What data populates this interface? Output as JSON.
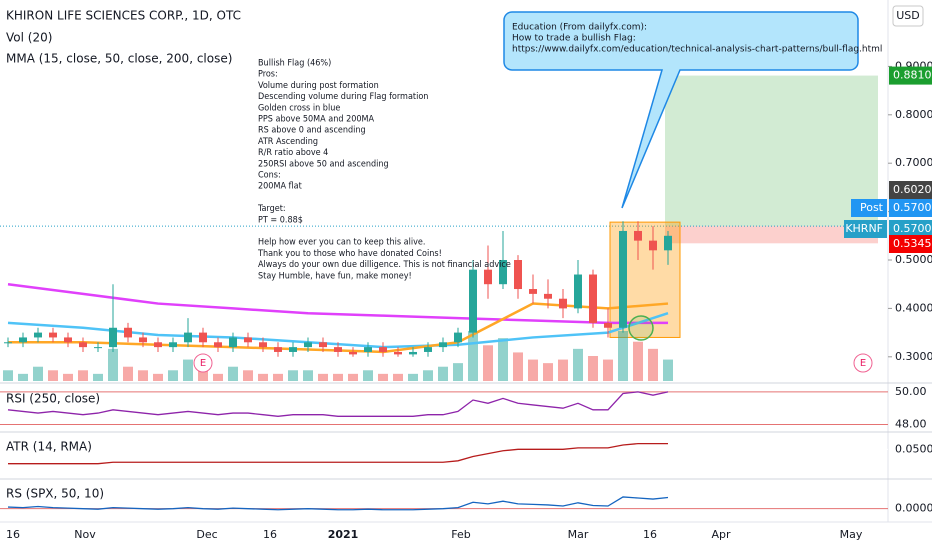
{
  "chart_data": {
    "type": "candlestick",
    "title": "KHIRON LIFE SCIENCES CORP., 1D, OTC",
    "indicator_labels": [
      "Vol (20)",
      "MMA (15, close, 50, close, 200, close)"
    ],
    "currency": "USD",
    "candles": [
      {
        "o": 0.33,
        "h": 0.34,
        "l": 0.32,
        "c": 0.33
      },
      {
        "o": 0.33,
        "h": 0.35,
        "l": 0.32,
        "c": 0.34
      },
      {
        "o": 0.34,
        "h": 0.36,
        "l": 0.33,
        "c": 0.35
      },
      {
        "o": 0.35,
        "h": 0.36,
        "l": 0.33,
        "c": 0.34
      },
      {
        "o": 0.34,
        "h": 0.35,
        "l": 0.32,
        "c": 0.33
      },
      {
        "o": 0.33,
        "h": 0.34,
        "l": 0.31,
        "c": 0.32
      },
      {
        "o": 0.32,
        "h": 0.33,
        "l": 0.31,
        "c": 0.32
      },
      {
        "o": 0.32,
        "h": 0.45,
        "l": 0.31,
        "c": 0.36
      },
      {
        "o": 0.36,
        "h": 0.37,
        "l": 0.33,
        "c": 0.34
      },
      {
        "o": 0.34,
        "h": 0.35,
        "l": 0.32,
        "c": 0.33
      },
      {
        "o": 0.33,
        "h": 0.34,
        "l": 0.31,
        "c": 0.32
      },
      {
        "o": 0.32,
        "h": 0.34,
        "l": 0.31,
        "c": 0.33
      },
      {
        "o": 0.33,
        "h": 0.38,
        "l": 0.32,
        "c": 0.35
      },
      {
        "o": 0.35,
        "h": 0.36,
        "l": 0.32,
        "c": 0.33
      },
      {
        "o": 0.33,
        "h": 0.34,
        "l": 0.31,
        "c": 0.32
      },
      {
        "o": 0.32,
        "h": 0.35,
        "l": 0.31,
        "c": 0.34
      },
      {
        "o": 0.34,
        "h": 0.35,
        "l": 0.32,
        "c": 0.33
      },
      {
        "o": 0.33,
        "h": 0.34,
        "l": 0.31,
        "c": 0.32
      },
      {
        "o": 0.32,
        "h": 0.33,
        "l": 0.3,
        "c": 0.31
      },
      {
        "o": 0.31,
        "h": 0.33,
        "l": 0.3,
        "c": 0.32
      },
      {
        "o": 0.32,
        "h": 0.34,
        "l": 0.31,
        "c": 0.33
      },
      {
        "o": 0.33,
        "h": 0.34,
        "l": 0.31,
        "c": 0.32
      },
      {
        "o": 0.32,
        "h": 0.33,
        "l": 0.3,
        "c": 0.31
      },
      {
        "o": 0.31,
        "h": 0.32,
        "l": 0.3,
        "c": 0.305
      },
      {
        "o": 0.31,
        "h": 0.33,
        "l": 0.3,
        "c": 0.32
      },
      {
        "o": 0.32,
        "h": 0.33,
        "l": 0.3,
        "c": 0.31
      },
      {
        "o": 0.31,
        "h": 0.32,
        "l": 0.3,
        "c": 0.305
      },
      {
        "o": 0.305,
        "h": 0.32,
        "l": 0.3,
        "c": 0.31
      },
      {
        "o": 0.31,
        "h": 0.33,
        "l": 0.3,
        "c": 0.32
      },
      {
        "o": 0.32,
        "h": 0.34,
        "l": 0.31,
        "c": 0.33
      },
      {
        "o": 0.33,
        "h": 0.36,
        "l": 0.32,
        "c": 0.35
      },
      {
        "o": 0.35,
        "h": 0.5,
        "l": 0.34,
        "c": 0.48
      },
      {
        "o": 0.48,
        "h": 0.53,
        "l": 0.42,
        "c": 0.45
      },
      {
        "o": 0.45,
        "h": 0.56,
        "l": 0.44,
        "c": 0.5
      },
      {
        "o": 0.5,
        "h": 0.51,
        "l": 0.42,
        "c": 0.44
      },
      {
        "o": 0.44,
        "h": 0.47,
        "l": 0.41,
        "c": 0.43
      },
      {
        "o": 0.43,
        "h": 0.46,
        "l": 0.4,
        "c": 0.42
      },
      {
        "o": 0.42,
        "h": 0.44,
        "l": 0.38,
        "c": 0.4
      },
      {
        "o": 0.4,
        "h": 0.5,
        "l": 0.39,
        "c": 0.47
      },
      {
        "o": 0.47,
        "h": 0.48,
        "l": 0.36,
        "c": 0.37
      },
      {
        "o": 0.37,
        "h": 0.4,
        "l": 0.34,
        "c": 0.36
      },
      {
        "o": 0.36,
        "h": 0.58,
        "l": 0.35,
        "c": 0.56
      },
      {
        "o": 0.56,
        "h": 0.58,
        "l": 0.5,
        "c": 0.54
      },
      {
        "o": 0.54,
        "h": 0.57,
        "l": 0.48,
        "c": 0.52
      },
      {
        "o": 0.52,
        "h": 0.56,
        "l": 0.49,
        "c": 0.55
      }
    ],
    "volume": [
      3,
      2,
      4,
      3,
      2,
      3,
      2,
      9,
      4,
      3,
      2,
      3,
      6,
      3,
      2,
      4,
      3,
      2,
      2,
      3,
      3,
      2,
      2,
      2,
      3,
      2,
      2,
      2,
      3,
      4,
      5,
      14,
      10,
      12,
      8,
      6,
      5,
      6,
      9,
      7,
      6,
      14,
      11,
      9,
      6
    ],
    "ma_x": [
      0,
      5,
      10,
      15,
      20,
      25,
      30,
      35,
      40,
      44
    ],
    "moving_averages": [
      {
        "name": "MA 200",
        "color": "#e040fb",
        "values": [
          0.45,
          0.43,
          0.41,
          0.4,
          0.39,
          0.385,
          0.38,
          0.375,
          0.37,
          0.37
        ]
      },
      {
        "name": "MA 50",
        "color": "#4fc3f7",
        "values": [
          0.37,
          0.36,
          0.345,
          0.34,
          0.33,
          0.32,
          0.325,
          0.34,
          0.35,
          0.39
        ]
      },
      {
        "name": "MA 15",
        "color": "#ffa726",
        "values": [
          0.33,
          0.33,
          0.325,
          0.32,
          0.315,
          0.31,
          0.33,
          0.41,
          0.4,
          0.41
        ]
      }
    ],
    "ylim": [
      0.25,
      1.0
    ],
    "yticks": [
      {
        "value": 0.3,
        "label": "0.3000"
      },
      {
        "value": 0.4,
        "label": "0.4000"
      },
      {
        "value": 0.5,
        "label": "0.5000"
      },
      {
        "value": 0.6,
        "label": "0.6000"
      },
      {
        "value": 0.7,
        "label": "0.7000"
      },
      {
        "value": 0.8,
        "label": "0.8000"
      },
      {
        "value": 0.9,
        "label": "0.9000"
      }
    ],
    "price_tags": [
      {
        "value": 0.881,
        "label": "0.8810",
        "color": "#1b9e2f"
      },
      {
        "value": 0.602,
        "label": "0.6020",
        "color": "#444444"
      },
      {
        "value": 0.57,
        "label": "0.5700",
        "name": "Post",
        "color": "#2196f3"
      },
      {
        "value": 0.57,
        "label": "0.5700",
        "name": "KHRNF",
        "color": "#26a0c8"
      },
      {
        "value": 0.5345,
        "label": "0.5345",
        "color": "#f40000"
      }
    ],
    "x_labels": [
      "16",
      "Nov",
      "Dec",
      "16",
      "2021",
      "Feb",
      "Mar",
      "16",
      "Apr",
      "May"
    ],
    "note_lines": [
      "Bullish Flag (46%)",
      "Pros:",
      "Volume during post formation",
      "Descending volume during Flag formation",
      "Golden cross in blue",
      "PPS above 50MA and 200MA",
      "RS above 0 and ascending",
      "ATR Ascending",
      "R/R ratio above 4",
      "250RSI above 50 and ascending",
      "Cons:",
      "200MA flat",
      "",
      "Target:",
      "PT = 0.88$",
      "",
      "Help how ever you can to keep this alive.",
      "Thank you to those who have donated Coins!",
      "Always do your own due dilligence. This is not financial advice",
      "Stay Humble, have fun, make money!"
    ],
    "callout_lines": [
      "Education (From dailyfx.com):",
      "How to trade a bullish Flag:",
      "https://www.dailyfx.com/education/technical-analysis-chart-patterns/bull-flag.html"
    ],
    "earnings_marker": "E",
    "panes": [
      {
        "label": "RSI (250, close)",
        "color": "#8e24aa",
        "ylim": [
          47.6,
          50.3
        ],
        "yticks": [
          {
            "value": 50,
            "label": "50.00"
          },
          {
            "value": 48,
            "label": "48.00"
          }
        ],
        "values": [
          48.9,
          48.8,
          48.7,
          48.8,
          48.7,
          48.6,
          48.7,
          48.9,
          48.8,
          48.7,
          48.6,
          48.7,
          48.8,
          48.7,
          48.6,
          48.7,
          48.7,
          48.6,
          48.5,
          48.6,
          48.6,
          48.6,
          48.5,
          48.5,
          48.5,
          48.5,
          48.5,
          48.5,
          48.6,
          48.6,
          48.8,
          49.5,
          49.3,
          49.6,
          49.3,
          49.2,
          49.1,
          49.0,
          49.3,
          48.9,
          48.9,
          49.9,
          50.0,
          49.8,
          50.0
        ]
      },
      {
        "label": "ATR (14, RMA)",
        "color": "#b71c1c",
        "ylim": [
          0.03,
          0.06
        ],
        "yticks": [
          {
            "value": 0.05,
            "label": "0.0500"
          }
        ],
        "values": [
          0.04,
          0.04,
          0.04,
          0.04,
          0.04,
          0.04,
          0.04,
          0.041,
          0.041,
          0.041,
          0.041,
          0.041,
          0.041,
          0.041,
          0.041,
          0.041,
          0.041,
          0.041,
          0.041,
          0.041,
          0.041,
          0.041,
          0.041,
          0.041,
          0.041,
          0.041,
          0.041,
          0.041,
          0.041,
          0.041,
          0.042,
          0.045,
          0.047,
          0.049,
          0.05,
          0.05,
          0.05,
          0.05,
          0.051,
          0.051,
          0.051,
          0.053,
          0.054,
          0.054,
          0.054
        ]
      },
      {
        "label": "RS (SPX, 50, 10)",
        "color": "#1565c0",
        "ylim": [
          -0.01,
          0.05
        ],
        "yticks": [
          {
            "value": 0,
            "label": "0.0000"
          }
        ],
        "values": [
          0.003,
          0.002,
          0.004,
          0.002,
          0.001,
          0.0,
          -0.001,
          0.002,
          0.001,
          0.0,
          -0.001,
          0.0,
          0.002,
          0.0,
          -0.001,
          0.001,
          0.0,
          -0.001,
          -0.002,
          -0.001,
          0.0,
          -0.001,
          -0.002,
          -0.002,
          -0.001,
          -0.002,
          -0.002,
          -0.002,
          -0.001,
          0.0,
          0.002,
          0.012,
          0.009,
          0.014,
          0.009,
          0.008,
          0.007,
          0.005,
          0.011,
          0.006,
          0.005,
          0.022,
          0.02,
          0.018,
          0.021
        ]
      }
    ]
  }
}
